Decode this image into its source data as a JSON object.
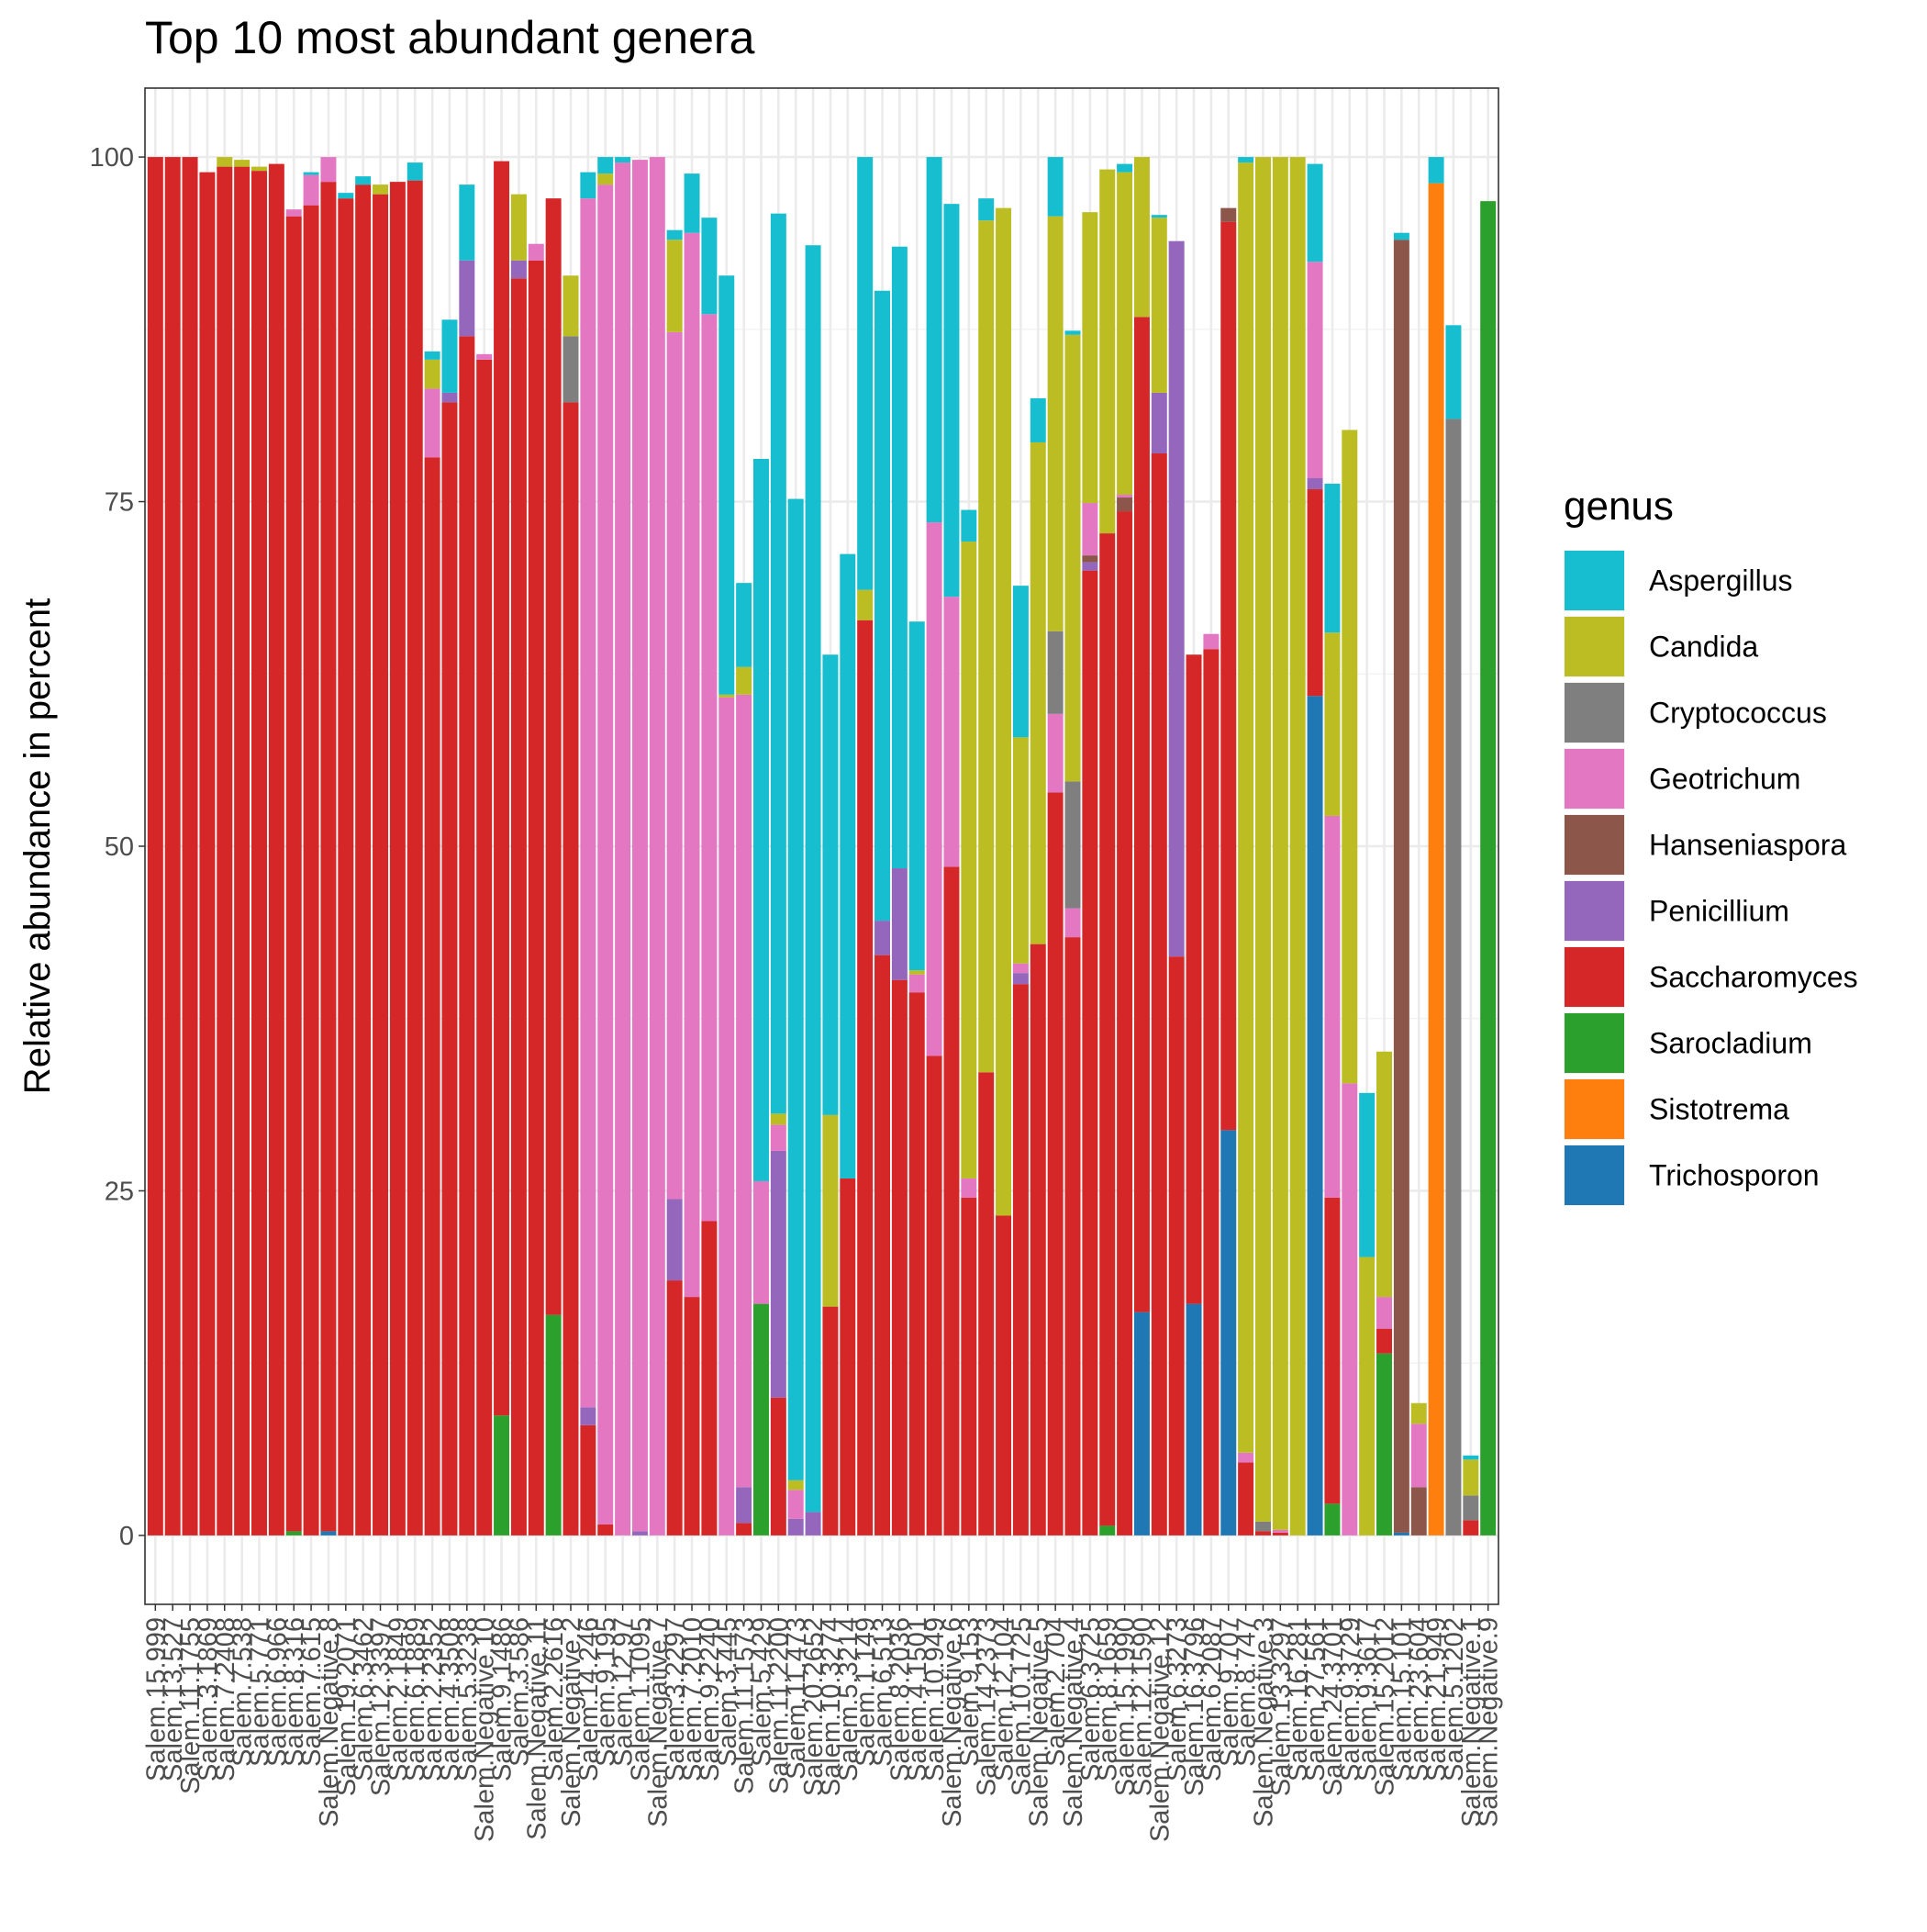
{
  "chart_data": {
    "type": "stacked_bar",
    "title": "Top 10 most abundant genera",
    "y_label": "Relative abundance in percent",
    "legend_title": "genus",
    "legend_position": "right",
    "grid": true,
    "ylim": [
      -5,
      105
    ],
    "yticks": [
      0,
      25,
      50,
      75,
      100
    ],
    "categories": [
      "Salem.15.999",
      "Salem.13.527",
      "Salem.11.1755",
      "Salem.3.1869",
      "Salem.7.2408",
      "Salem.7.538",
      "Salem.5.771",
      "Salem.6.966",
      "Salem.8.316",
      "Salem.7.615",
      "Salem.Negative.8",
      "Salem.19.2071",
      "Salem.6.3462",
      "Salem.12.3397",
      "Salem.2.1849",
      "Salem.6.1889",
      "Salem.2.2352",
      "Salem.4.3508",
      "Salem.5.3238",
      "Salem.Negative.10",
      "Salem.9.1486",
      "Salem.3.586",
      "Salem.Negative.11",
      "Salem.2.2616",
      "Salem.Negative.2",
      "Salem.14.246",
      "Salem.9.195",
      "Salem.12.97",
      "Salem.1.1095",
      "Salem.Negative.7",
      "Salem.3.2297",
      "Salem.7.2010",
      "Salem.9.2240",
      "Salem.3.445",
      "Salem.11.1573",
      "Salem.5.429",
      "Salem.11.2200",
      "Salem.11.473",
      "Salem.20.2652",
      "Salem.10.3274",
      "Salem.5.3214",
      "Salem.1.149",
      "Salem.6.513",
      "Salem.8.2036",
      "Salem.4.1501",
      "Salem.10.949",
      "Salem.Negative.6",
      "Salem.9.153",
      "Salem.14.2373",
      "Salem.12.104",
      "Salem.10.1725",
      "Salem.Negative.5",
      "Salem.2.704",
      "Salem.Negative.4",
      "Salem.6.3725",
      "Salem.8.1659",
      "Salem.15.1990",
      "Salem.12.1590",
      "Salem.Negative.12",
      "Salem.6.3273",
      "Salem.16.3796",
      "Salem.6.2087",
      "Salem.9.707",
      "Salem.8.747",
      "Salem.Negative.3",
      "Salem.13.3297",
      "Salem.16.281",
      "Salem.27.561",
      "Salem.24.3701",
      "Salem.9.3729",
      "Salem.9.3617",
      "Salem.15.2012",
      "Salem.15.101",
      "Salem.23.604",
      "Salem.21.949",
      "Salem.5.1202",
      "Salem.Negative.1",
      "Salem.Negative.9"
    ],
    "series": [
      {
        "name": "Aspergillus",
        "color": "#17becf",
        "values": [
          0,
          0,
          0,
          0,
          0,
          0,
          0,
          0,
          0,
          0.2,
          0,
          0.4,
          0.6,
          0,
          0,
          1.3,
          0.6,
          5.3,
          5.5,
          0,
          0,
          0,
          0,
          0,
          0,
          1.9,
          1.2,
          0.4,
          0,
          0,
          0.7,
          4.3,
          7,
          30.4,
          6.1,
          52.4,
          65.3,
          71.2,
          91.9,
          33.4,
          45.3,
          31.4,
          45.7,
          45.1,
          25.3,
          26.5,
          28.5,
          2.3,
          1.6,
          0,
          11,
          3.2,
          4.3,
          0.3,
          0,
          0,
          0.6,
          0,
          0.2,
          0,
          0,
          0,
          0,
          0.4,
          0,
          0,
          0,
          7.1,
          10.8,
          0,
          11.9,
          0,
          0.5,
          0,
          1.9,
          6.8,
          0.3,
          0
        ]
      },
      {
        "name": "Candida",
        "color": "#bcbd22",
        "values": [
          0,
          0,
          0,
          0,
          0.7,
          0.5,
          0.3,
          0,
          0,
          0,
          0,
          0,
          0,
          0.7,
          0,
          0,
          2.1,
          0,
          0,
          0,
          0,
          4.8,
          0,
          0,
          4.4,
          0,
          0.8,
          0,
          0,
          0,
          6.7,
          0,
          0,
          0.2,
          2,
          0,
          0.8,
          0.7,
          0,
          13.9,
          0,
          2.2,
          0,
          0,
          0.3,
          0,
          0,
          46.2,
          61.8,
          73.1,
          16.4,
          36.4,
          30.1,
          32.4,
          21.1,
          26.4,
          23.4,
          11.6,
          12.7,
          0,
          0,
          0,
          0,
          93.6,
          99,
          99.6,
          100,
          0,
          13.3,
          47.4,
          20.2,
          17.8,
          0,
          1.5,
          0,
          0,
          2.6,
          0
        ]
      },
      {
        "name": "Cryptococcus",
        "color": "#7f7f7f",
        "values": [
          0,
          0,
          0,
          0,
          0,
          0,
          0,
          0,
          0,
          0,
          0,
          0,
          0,
          0,
          0,
          0,
          0,
          0,
          0,
          0,
          0,
          0,
          0,
          0,
          4.8,
          0,
          0,
          0,
          0,
          0,
          0,
          0,
          0,
          0,
          0,
          0,
          0,
          0,
          0,
          0,
          0,
          0,
          0,
          0,
          0,
          0,
          0,
          0,
          0,
          0,
          0,
          0,
          6,
          9.2,
          0,
          0,
          0,
          0,
          0,
          0,
          0,
          0,
          0,
          0,
          0.7,
          0,
          0,
          0,
          0,
          0,
          0,
          0,
          0,
          0,
          0,
          81,
          1.8,
          0
        ]
      },
      {
        "name": "Geotrichum",
        "color": "#e377c2",
        "values": [
          0,
          0,
          0,
          0,
          0,
          0,
          0,
          0,
          0.5,
          2.2,
          1.8,
          0,
          0,
          0,
          0,
          0,
          5,
          0,
          0,
          0.4,
          0,
          0,
          1.2,
          0,
          0,
          87.7,
          97.2,
          99.6,
          99.5,
          100,
          62.9,
          77.2,
          65.8,
          60.8,
          57.5,
          8.9,
          1.9,
          2.1,
          0,
          0,
          0,
          0,
          0,
          0,
          1.3,
          38.7,
          19.6,
          1.4,
          0,
          0,
          0.7,
          0,
          5.7,
          2.1,
          3.8,
          0,
          0.2,
          0,
          0,
          0,
          0,
          1.1,
          0,
          0.7,
          0,
          0.2,
          0,
          15.7,
          27.7,
          32.8,
          0,
          2.3,
          0,
          4.6,
          0,
          0,
          0,
          0
        ]
      },
      {
        "name": "Hanseniaspora",
        "color": "#8c564b",
        "values": [
          0,
          0,
          0,
          0,
          0,
          0,
          0,
          0,
          0,
          0,
          0,
          0,
          0,
          0,
          0,
          0,
          0,
          0,
          0,
          0,
          0,
          0,
          0,
          0,
          0,
          0,
          0,
          0,
          0,
          0,
          0,
          0,
          0,
          0,
          0,
          0,
          0,
          0,
          0,
          0,
          0,
          0,
          0,
          0,
          0,
          0,
          0,
          0,
          0,
          0,
          0,
          0,
          0,
          0,
          0.5,
          0,
          1,
          0,
          0,
          0,
          0,
          0,
          1,
          0,
          0,
          0,
          0,
          0,
          0,
          0,
          0,
          0,
          93.8,
          3.5,
          0,
          0,
          0,
          0
        ]
      },
      {
        "name": "Penicillium",
        "color": "#9467bd",
        "values": [
          0,
          0,
          0,
          0,
          0,
          0,
          0,
          0,
          0,
          0,
          0,
          0,
          0,
          0,
          0,
          0,
          0,
          0.7,
          5.5,
          0,
          0,
          1.3,
          0,
          0,
          0,
          1.3,
          0,
          0,
          0.3,
          0,
          5.9,
          0,
          0,
          0,
          2.6,
          0,
          17.9,
          1.2,
          1.7,
          0,
          0,
          0,
          2.5,
          8.1,
          0,
          0,
          0,
          0,
          0,
          0,
          0.8,
          0,
          0,
          0,
          0.6,
          0,
          0,
          0,
          4.4,
          51.9,
          0,
          0,
          0,
          0,
          0,
          0,
          0,
          0.8,
          0,
          0,
          0,
          0,
          0,
          0,
          0,
          0,
          0,
          0
        ]
      },
      {
        "name": "Saccharomyces",
        "color": "#d62728",
        "values": [
          100,
          100,
          100,
          98.9,
          99.3,
          99.3,
          99,
          99.5,
          95.4,
          96.5,
          97.9,
          97,
          98,
          97.3,
          98.2,
          98.3,
          78.2,
          82.2,
          87,
          85.3,
          91,
          91.2,
          92.5,
          81,
          82.2,
          8,
          0.8,
          0,
          0,
          0,
          18.5,
          17.3,
          22.8,
          0,
          0.9,
          0,
          10,
          0,
          0,
          16.6,
          25.9,
          66.4,
          42.1,
          40.3,
          39.4,
          34.8,
          48.5,
          24.5,
          33.6,
          23.2,
          40,
          42.9,
          53.9,
          43.4,
          70,
          72,
          74.3,
          72.2,
          78.5,
          42,
          47.1,
          64.3,
          65.9,
          5.3,
          0.3,
          0.2,
          0,
          15,
          22.2,
          0,
          0,
          1.8,
          0,
          0,
          0,
          0,
          1.1,
          0
        ]
      },
      {
        "name": "Sarocladium",
        "color": "#2ca02c",
        "values": [
          0,
          0,
          0,
          0,
          0,
          0,
          0,
          0,
          0.3,
          0,
          0,
          0,
          0,
          0,
          0,
          0,
          0,
          0,
          0,
          0,
          8.7,
          0,
          0,
          16,
          0,
          0,
          0,
          0,
          0,
          0,
          0,
          0,
          0,
          0,
          0,
          16.8,
          0,
          0,
          0,
          0,
          0,
          0,
          0,
          0,
          0,
          0,
          0,
          0,
          0,
          0,
          0,
          0,
          0,
          0,
          0,
          0.7,
          0,
          0,
          0,
          0,
          0,
          0,
          0,
          0,
          0,
          0,
          0,
          0,
          2.3,
          0,
          0,
          13.2,
          0,
          0,
          0,
          0,
          0,
          96.8
        ]
      },
      {
        "name": "Sistotrema",
        "color": "#ff7f0e",
        "values": [
          0,
          0,
          0,
          0,
          0,
          0,
          0,
          0,
          0,
          0,
          0,
          0,
          0,
          0,
          0,
          0,
          0,
          0,
          0,
          0,
          0,
          0,
          0,
          0,
          0,
          0,
          0,
          0,
          0,
          0,
          0,
          0,
          0,
          0,
          0,
          0,
          0,
          0,
          0,
          0,
          0,
          0,
          0,
          0,
          0,
          0,
          0,
          0,
          0,
          0,
          0,
          0,
          0,
          0,
          0,
          0,
          0,
          0,
          0,
          0,
          0,
          0,
          0,
          0,
          0,
          0,
          0,
          0,
          0,
          0,
          0,
          0,
          0,
          0,
          98.1,
          0,
          0,
          0
        ]
      },
      {
        "name": "Trichosporon",
        "color": "#1f77b4",
        "values": [
          0,
          0,
          0,
          0,
          0,
          0,
          0,
          0,
          0,
          0,
          0.3,
          0,
          0,
          0,
          0,
          0,
          0,
          0,
          0,
          0,
          0,
          0,
          0,
          0,
          0,
          0,
          0,
          0,
          0,
          0,
          0,
          0,
          0,
          0,
          0,
          0,
          0,
          0,
          0,
          0,
          0,
          0,
          0,
          0,
          0,
          0,
          0,
          0,
          0,
          0,
          0,
          0,
          0,
          0,
          0,
          0,
          0,
          16.2,
          0,
          0,
          16.8,
          0,
          29.4,
          0,
          0,
          0,
          0,
          60.9,
          0,
          0,
          0,
          0,
          0.2,
          0,
          0,
          0,
          0,
          0
        ]
      }
    ]
  }
}
